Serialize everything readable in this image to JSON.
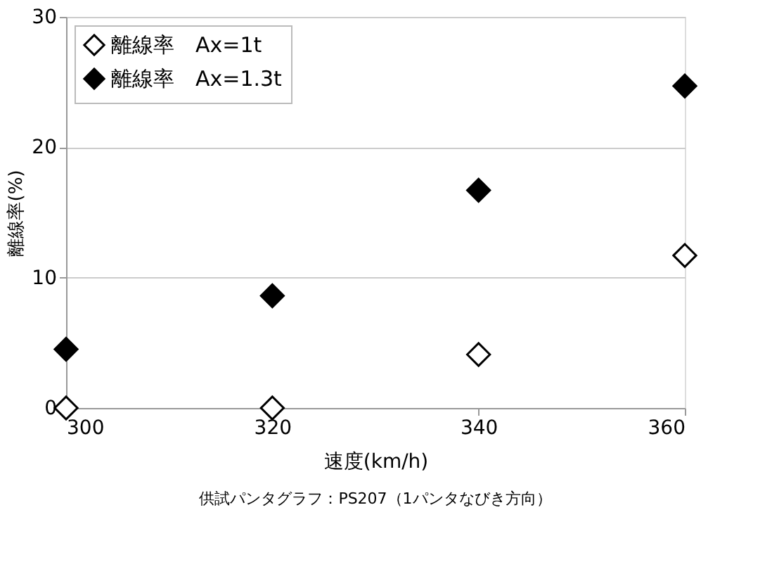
{
  "chart_data": {
    "type": "scatter",
    "xlabel": "速度(km/h)",
    "ylabel": "離線率(%)",
    "x": [
      300,
      320,
      340,
      360
    ],
    "series": [
      {
        "name": "離線率　Ax=1t",
        "color": "#ffffff",
        "values": [
          0,
          0,
          4.1,
          11.7
        ]
      },
      {
        "name": "離線率　Ax=1.3t",
        "color": "#000000",
        "values": [
          4.5,
          8.6,
          16.7,
          24.7
        ]
      }
    ],
    "xlim": [
      300,
      360
    ],
    "xticks": [
      300,
      320,
      340,
      360
    ],
    "ylim": [
      0,
      30
    ],
    "yticks": [
      0,
      10,
      20,
      30
    ],
    "grid": "y",
    "legend": "top left",
    "marker": "diamond",
    "annotations": [
      "供試パンタグラフ：PS207（1パンタなびき方向）"
    ]
  }
}
